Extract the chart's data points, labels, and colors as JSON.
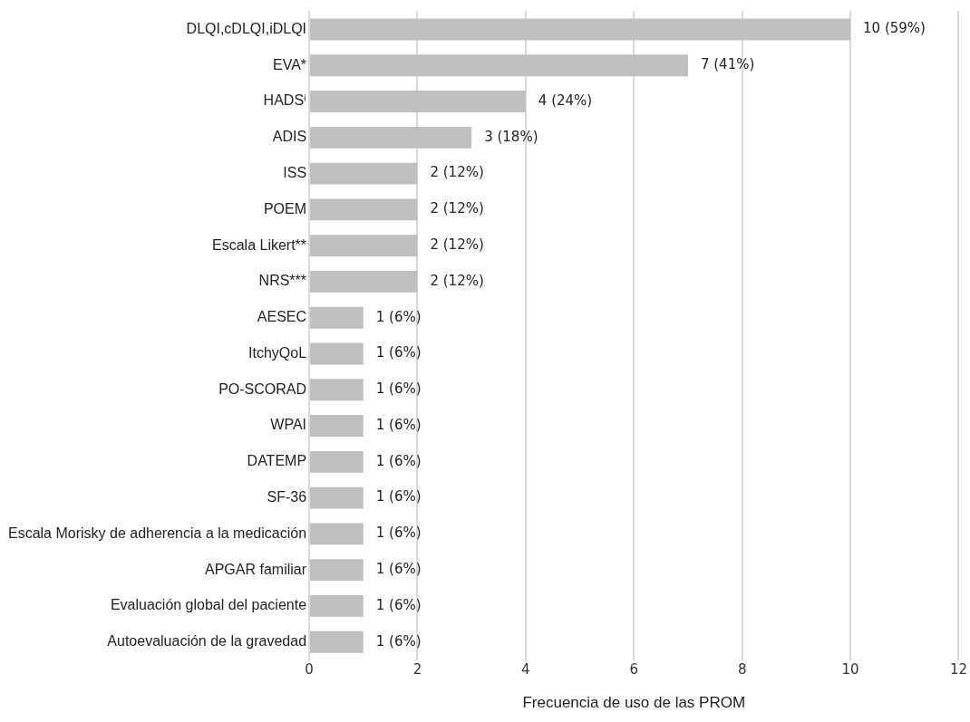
{
  "chart_data": {
    "type": "bar",
    "orientation": "horizontal",
    "xlabel": "Frecuencia de uso de las PROM",
    "categories": [
      "DLQI,cDLQI,iDLQI",
      "EVA*",
      "HADSⁱ",
      "ADIS",
      "ISS",
      "POEM",
      "Escala Likert**",
      "NRS***",
      "AESEC",
      "ItchyQoL",
      "PO-SCORAD",
      "WPAI",
      "DATEMP",
      "SF-36",
      "Escala Morisky de adherencia a la medicación",
      "APGAR familiar",
      "Evaluación global del paciente",
      "Autoevaluación de la gravedad"
    ],
    "values": [
      10,
      7,
      4,
      3,
      2,
      2,
      2,
      2,
      1,
      1,
      1,
      1,
      1,
      1,
      1,
      1,
      1,
      1
    ],
    "value_labels": [
      "10 (59%)",
      "7 (41%)",
      "4 (24%)",
      "3 (18%)",
      "2 (12%)",
      "2 (12%)",
      "2 (12%)",
      "2 (12%)",
      "1 (6%)",
      "1 (6%)",
      "1 (6%)",
      "1 (6%)",
      "1 (6%)",
      "1 (6%)",
      "1 (6%)",
      "1 (6%)",
      "1 (6%)",
      "1 (6%)"
    ],
    "color": "#bfbfbf",
    "xlim": [
      0,
      12
    ],
    "xticks": [
      0,
      2,
      4,
      6,
      8,
      10,
      12
    ],
    "grid": "x",
    "legend": false
  }
}
